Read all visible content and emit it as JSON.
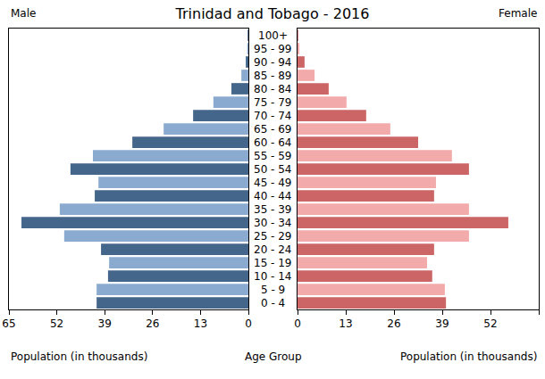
{
  "chart_data": {
    "type": "bar",
    "orientation": "horizontal",
    "title": "Trinidad and Tobago - 2016",
    "xlabel": "Population (in thousands)",
    "ylabel": "Age Group",
    "categories": [
      "0 - 4",
      "5 - 9",
      "10 - 14",
      "15 - 19",
      "20 - 24",
      "25 - 29",
      "30 - 34",
      "35 - 39",
      "40 - 44",
      "45 - 49",
      "50 - 54",
      "55 - 59",
      "60 - 64",
      "65 - 69",
      "70 - 74",
      "75 - 79",
      "80 - 84",
      "85 - 89",
      "90 - 94",
      "95 - 99",
      "100+"
    ],
    "series": [
      {
        "name": "Male",
        "values": [
          41.2,
          41.2,
          38.1,
          37.8,
          40.0,
          50.0,
          61.6,
          51.2,
          41.7,
          40.7,
          48.3,
          42.2,
          31.5,
          23.0,
          15.0,
          9.5,
          4.6,
          1.9,
          0.7,
          0.3,
          0.2
        ],
        "colors": [
          "#44668a",
          "#8aabcf",
          "#44668a",
          "#8aabcf",
          "#44668a",
          "#8aabcf",
          "#44668a",
          "#8aabcf",
          "#44668a",
          "#8aabcf",
          "#44668a",
          "#8aabcf",
          "#44668a",
          "#8aabcf",
          "#44668a",
          "#8aabcf",
          "#44668a",
          "#8aabcf",
          "#44668a",
          "#8aabcf",
          "#44668a"
        ]
      },
      {
        "name": "Female",
        "values": [
          40.0,
          39.7,
          36.3,
          34.9,
          36.8,
          46.2,
          56.8,
          46.2,
          36.8,
          37.3,
          46.2,
          41.6,
          32.5,
          25.0,
          18.5,
          13.2,
          8.4,
          4.6,
          1.9,
          0.5,
          0.2
        ],
        "colors": [
          "#cc6666",
          "#f2aaaa",
          "#cc6666",
          "#f2aaaa",
          "#cc6666",
          "#f2aaaa",
          "#cc6666",
          "#f2aaaa",
          "#cc6666",
          "#f2aaaa",
          "#cc6666",
          "#f2aaaa",
          "#cc6666",
          "#f2aaaa",
          "#cc6666",
          "#f2aaaa",
          "#cc6666",
          "#f2aaaa",
          "#cc6666",
          "#f2aaaa",
          "#cc6666"
        ]
      }
    ],
    "xlim": [
      0,
      65
    ],
    "xticks": [
      0,
      13,
      26,
      39,
      52,
      65
    ],
    "grid": false
  }
}
